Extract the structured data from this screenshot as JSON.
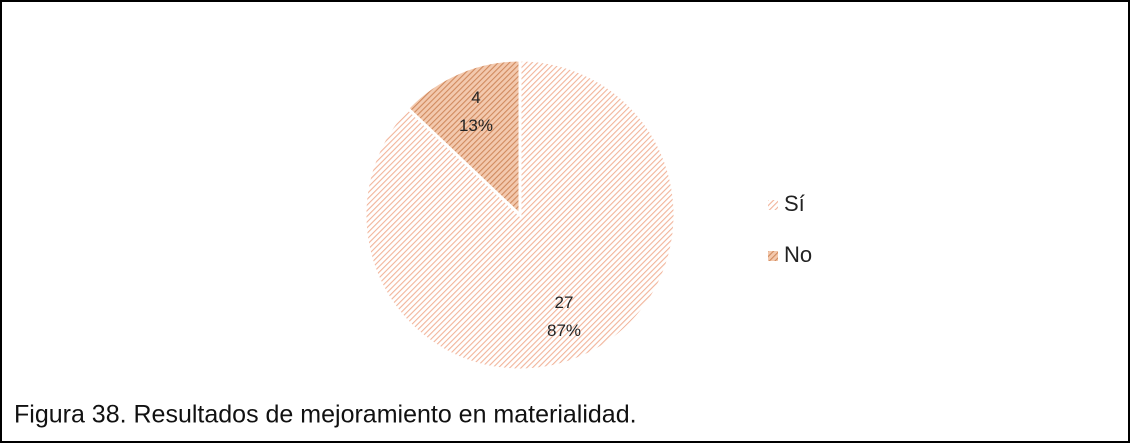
{
  "chart_data": {
    "type": "pie",
    "categories": [
      "Sí",
      "No"
    ],
    "values": [
      27,
      4
    ],
    "percent_labels": [
      "87%",
      "13%"
    ],
    "colors": [
      "#f2b49a",
      "#d08a5e"
    ],
    "legend": "right",
    "caption": "Figura 38. Resultados de mejoramiento en materialidad."
  }
}
